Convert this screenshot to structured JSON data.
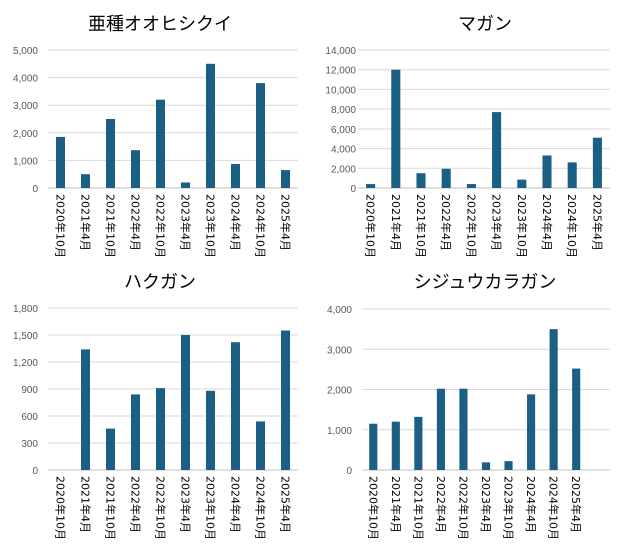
{
  "chart_data": [
    {
      "type": "bar",
      "title": "亜種オオヒシクイ",
      "categories": [
        "2020年10月",
        "2021年4月",
        "2021年10月",
        "2022年4月",
        "2022年10月",
        "2023年4月",
        "2023年10月",
        "2024年4月",
        "2024年10月",
        "2025年4月"
      ],
      "values": [
        1850,
        500,
        2500,
        1370,
        3200,
        200,
        4500,
        870,
        3800,
        650
      ],
      "ylim": [
        0,
        5000
      ],
      "yticks": [
        "0",
        "1,000",
        "2,000",
        "3,000",
        "4,000",
        "5,000"
      ],
      "grid": true
    },
    {
      "type": "bar",
      "title": "マガン",
      "categories": [
        "2020年10月",
        "2021年4月",
        "2021年10月",
        "2022年4月",
        "2022年10月",
        "2023年4月",
        "2023年10月",
        "2024年4月",
        "2024年10月",
        "2025年4月"
      ],
      "values": [
        400,
        12000,
        1500,
        1950,
        400,
        7700,
        850,
        3300,
        2600,
        5100
      ],
      "ylim": [
        0,
        14000
      ],
      "yticks": [
        "0",
        "2,000",
        "4,000",
        "6,000",
        "8,000",
        "10,000",
        "12,000",
        "14,000"
      ],
      "grid": true
    },
    {
      "type": "bar",
      "title": "ハクガン",
      "categories": [
        "2020年10月",
        "2021年4月",
        "2021年10月",
        "2022年4月",
        "2022年10月",
        "2023年4月",
        "2023年10月",
        "2024年4月",
        "2024年10月",
        "2025年4月"
      ],
      "values": [
        0,
        1340,
        460,
        840,
        910,
        1500,
        880,
        1420,
        540,
        1550
      ],
      "ylim": [
        0,
        1800
      ],
      "yticks": [
        "0",
        "300",
        "600",
        "900",
        "1,200",
        "1,500",
        "1,800"
      ],
      "grid": true
    },
    {
      "type": "bar",
      "title": "シジュウカラガン",
      "categories": [
        "2020年10月",
        "2021年4月",
        "2021年10月",
        "2022年4月",
        "2022年10月",
        "2023年4月",
        "2023年10月",
        "2024年4月",
        "2024年10月",
        "2025年4月"
      ],
      "values": [
        1150,
        1200,
        1320,
        2020,
        2020,
        190,
        220,
        1880,
        3500,
        2520
      ],
      "ylim": [
        0,
        4000
      ],
      "yticks": [
        "0",
        "1,000",
        "2,000",
        "3,000",
        "4,000"
      ],
      "grid": true
    }
  ],
  "colors": {
    "bar": "#1b5f84",
    "grid": "#d9d9d9"
  }
}
